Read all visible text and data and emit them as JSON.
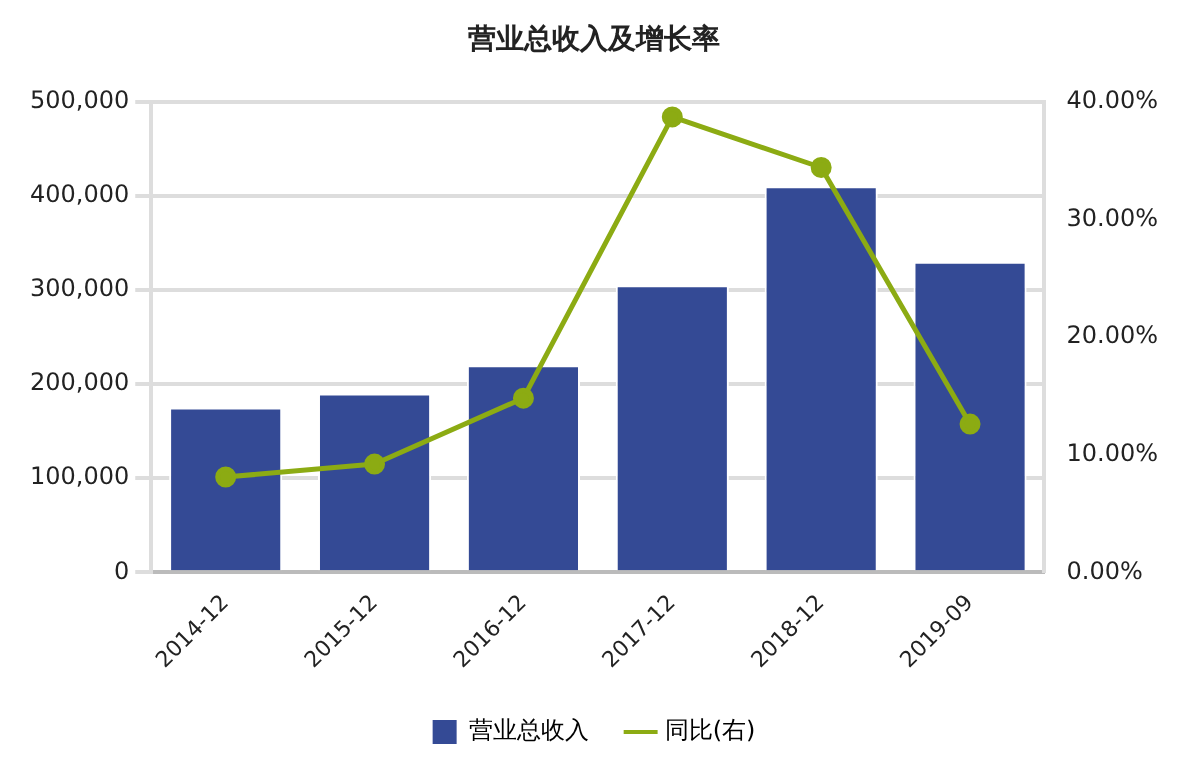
{
  "chart_data": {
    "type": "bar",
    "title": "营业总收入及增长率",
    "categories": [
      "2014-12",
      "2015-12",
      "2016-12",
      "2017-12",
      "2018-12",
      "2019-09"
    ],
    "series": [
      {
        "name": "营业总收入",
        "color": "#344a95",
        "values": [
          175000,
          190000,
          220000,
          305000,
          410000,
          330000
        ]
      },
      {
        "name": "同比(右)",
        "type": "line",
        "axis": "y2",
        "color": "#8cab13",
        "values": [
          8.1,
          9.2,
          14.8,
          38.7,
          34.4,
          12.6
        ]
      }
    ],
    "ylim": [
      0,
      500000
    ],
    "yticks": [
      {
        "value": 0,
        "label": "0"
      },
      {
        "value": 100000,
        "label": "100,000"
      },
      {
        "value": 200000,
        "label": "200,000"
      },
      {
        "value": 300000,
        "label": "300,000"
      },
      {
        "value": 400000,
        "label": "400,000"
      },
      {
        "value": 500000,
        "label": "500,000"
      }
    ],
    "y2lim": [
      0,
      40
    ],
    "y2ticks": [
      {
        "value": 0,
        "label": "0.00%"
      },
      {
        "value": 10,
        "label": "10.00%"
      },
      {
        "value": 20,
        "label": "20.00%"
      },
      {
        "value": 30,
        "label": "30.00%"
      },
      {
        "value": 40,
        "label": "40.00%"
      }
    ],
    "grid": "y",
    "legend": "bottom",
    "marker": "circle"
  }
}
